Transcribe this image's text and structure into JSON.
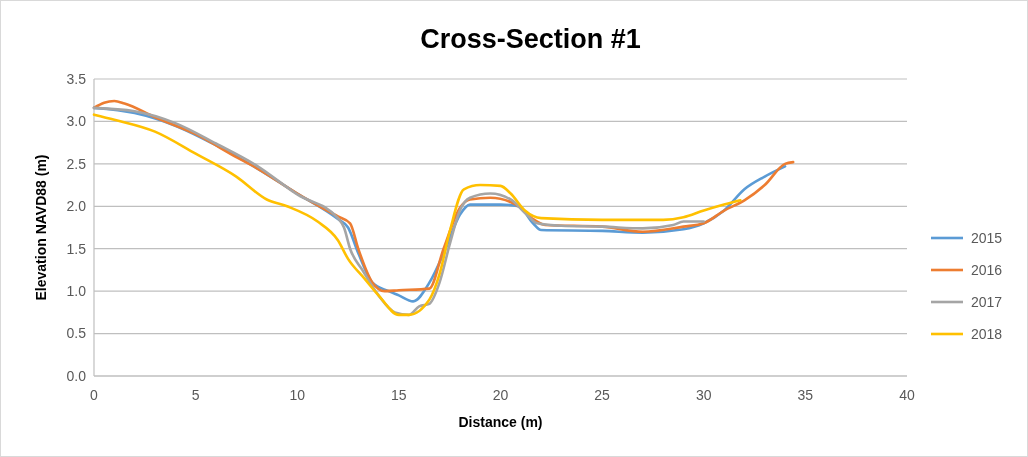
{
  "chart_data": {
    "type": "line",
    "title": "Cross-Section #1",
    "xlabel": "Distance (m)",
    "ylabel": "Elevation NAVD88 (m)",
    "xlim": [
      0,
      40
    ],
    "xticks": [
      0,
      5,
      10,
      15,
      20,
      25,
      30,
      35,
      40
    ],
    "ylim": [
      0,
      3.5
    ],
    "yticks": [
      {
        "value": 0,
        "label": "0.0"
      },
      {
        "value": 0.5,
        "label": "0.5"
      },
      {
        "value": 1,
        "label": "1.0"
      },
      {
        "value": 1.5,
        "label": "1.5"
      },
      {
        "value": 2,
        "label": "2.0"
      },
      {
        "value": 2.5,
        "label": "2.5"
      },
      {
        "value": 3,
        "label": "3.0"
      },
      {
        "value": 3.5,
        "label": "3.5"
      }
    ],
    "grid": "y",
    "legend": "right",
    "marker": "none",
    "line_style": "solid",
    "series": [
      {
        "name": "2015",
        "color": "#5b9bd5",
        "x": [
          0,
          2,
          4,
          6,
          8,
          10,
          12,
          12.5,
          13,
          13.7,
          14.5,
          15,
          15.7,
          16.5,
          17.3,
          18,
          18.5,
          20,
          20.9,
          21.6,
          22,
          25,
          27,
          29,
          30,
          31,
          32,
          33,
          34
        ],
        "values": [
          3.16,
          3.1,
          2.95,
          2.72,
          2.45,
          2.15,
          1.85,
          1.75,
          1.45,
          1.1,
          1.0,
          0.95,
          0.88,
          1.1,
          1.5,
          1.9,
          2.02,
          2.02,
          2.0,
          1.8,
          1.72,
          1.71,
          1.69,
          1.73,
          1.8,
          1.95,
          2.2,
          2.35,
          2.47
        ]
      },
      {
        "name": "2016",
        "color": "#ed7d31",
        "x": [
          0,
          0.5,
          1,
          1.5,
          3,
          5,
          7,
          8,
          10,
          12,
          12.6,
          13,
          13.7,
          14.3,
          15,
          16.5,
          17.2,
          18,
          18.5,
          19.5,
          20.5,
          21,
          21.6,
          22.2,
          25,
          27,
          29,
          30,
          31,
          32,
          33,
          34,
          34.4
        ],
        "values": [
          3.16,
          3.22,
          3.24,
          3.21,
          3.05,
          2.85,
          2.58,
          2.45,
          2.15,
          1.88,
          1.8,
          1.5,
          1.1,
          1.0,
          1.01,
          1.03,
          1.5,
          1.98,
          2.08,
          2.1,
          2.05,
          1.98,
          1.85,
          1.78,
          1.76,
          1.7,
          1.76,
          1.8,
          1.95,
          2.07,
          2.25,
          2.5,
          2.52
        ]
      },
      {
        "name": "2017",
        "color": "#a5a5a5",
        "x": [
          0,
          2,
          4,
          6,
          8,
          10,
          12,
          12.3,
          12.6,
          13.2,
          14,
          14.8,
          15.5,
          16,
          16.5,
          17,
          17.5,
          18,
          18.5,
          19.5,
          20.5,
          21.3,
          21.8,
          23,
          25,
          27,
          28.5,
          29,
          30
        ],
        "values": [
          3.16,
          3.12,
          2.98,
          2.74,
          2.48,
          2.14,
          1.86,
          1.75,
          1.5,
          1.25,
          0.95,
          0.75,
          0.72,
          0.82,
          0.85,
          1.1,
          1.55,
          1.95,
          2.1,
          2.15,
          2.08,
          1.9,
          1.8,
          1.77,
          1.76,
          1.74,
          1.78,
          1.82,
          1.82
        ]
      },
      {
        "name": "2018",
        "color": "#ffc000",
        "x": [
          0,
          1,
          3,
          5,
          7,
          8.5,
          9.5,
          11,
          12,
          12.5,
          13.3,
          14,
          15,
          15.5,
          16.5,
          17,
          17.5,
          18.2,
          19,
          20,
          20.5,
          21.2,
          22,
          25,
          28,
          29,
          30,
          31,
          31.8
        ],
        "values": [
          3.08,
          3.02,
          2.88,
          2.62,
          2.35,
          2.08,
          2.0,
          1.82,
          1.6,
          1.38,
          1.15,
          0.95,
          0.72,
          0.72,
          0.9,
          1.2,
          1.7,
          2.2,
          2.25,
          2.24,
          2.15,
          1.95,
          1.86,
          1.84,
          1.84,
          1.87,
          1.95,
          2.02,
          2.07
        ]
      }
    ]
  }
}
